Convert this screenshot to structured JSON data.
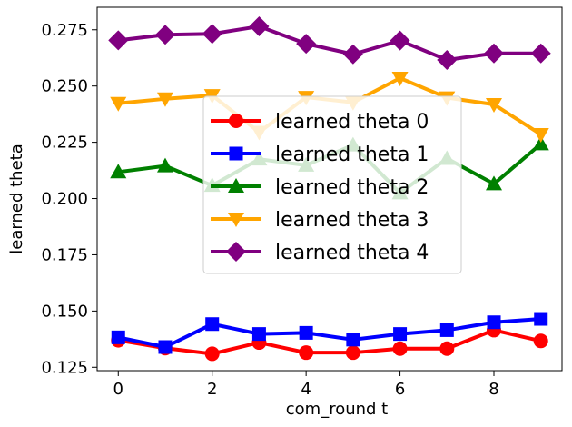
{
  "chart_data": {
    "type": "line",
    "title": "",
    "xlabel": "com_round t",
    "ylabel": "learned theta",
    "xlim": [
      -0.45,
      9.45
    ],
    "ylim": [
      0.1235,
      0.285
    ],
    "xticks": [
      0,
      2,
      4,
      6,
      8
    ],
    "xtick_labels": [
      "0",
      "2",
      "4",
      "6",
      "8"
    ],
    "yticks": [
      0.125,
      0.15,
      0.175,
      0.2,
      0.225,
      0.25,
      0.275
    ],
    "ytick_labels": [
      "0.125",
      "0.150",
      "0.175",
      "0.200",
      "0.225",
      "0.250",
      "0.275"
    ],
    "grid": false,
    "legend_position": "center",
    "x": [
      0,
      1,
      2,
      3,
      4,
      5,
      6,
      7,
      8,
      9
    ],
    "series": [
      {
        "name": "learned theta 0",
        "color": "#ff0000",
        "marker": "circle",
        "values": [
          0.137,
          0.1335,
          0.131,
          0.136,
          0.1315,
          0.1315,
          0.1333,
          0.1333,
          0.1415,
          0.1367
        ]
      },
      {
        "name": "learned theta 1",
        "color": "#0000ff",
        "marker": "square",
        "values": [
          0.1383,
          0.134,
          0.1442,
          0.1398,
          0.1403,
          0.1373,
          0.1398,
          0.1415,
          0.145,
          0.1465
        ]
      },
      {
        "name": "learned theta 2",
        "color": "#008000",
        "marker": "triangle-up",
        "values": [
          0.2118,
          0.2145,
          0.2058,
          0.2175,
          0.2148,
          0.2238,
          0.2025,
          0.2178,
          0.2065,
          0.2243
        ]
      },
      {
        "name": "learned theta 3",
        "color": "#ffa500",
        "marker": "triangle-down",
        "values": [
          0.2423,
          0.2443,
          0.2458,
          0.2295,
          0.245,
          0.2427,
          0.2535,
          0.2448,
          0.2418,
          0.2285
        ]
      },
      {
        "name": "learned theta 4",
        "color": "#800080",
        "marker": "diamond",
        "values": [
          0.2703,
          0.2728,
          0.2732,
          0.2765,
          0.2688,
          0.2641,
          0.2702,
          0.2616,
          0.2645,
          0.2645
        ]
      }
    ]
  }
}
